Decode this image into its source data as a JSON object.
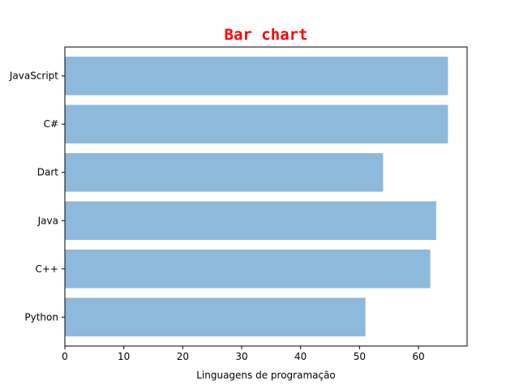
{
  "colors": {
    "bar": "#8db9da",
    "title": "#ff0000",
    "axis": "#000000"
  },
  "chart_data": {
    "type": "bar",
    "orientation": "horizontal",
    "title": "Bar chart",
    "xlabel": "Linguagens de programação",
    "ylabel": "",
    "categories": [
      "Python",
      "C++",
      "Java",
      "Dart",
      "C#",
      "JavaScript"
    ],
    "values": [
      51,
      62,
      63,
      54,
      65,
      65
    ],
    "xlim": [
      0,
      68.25
    ],
    "xticks": [
      0,
      10,
      20,
      30,
      40,
      50,
      60
    ],
    "grid": false
  }
}
